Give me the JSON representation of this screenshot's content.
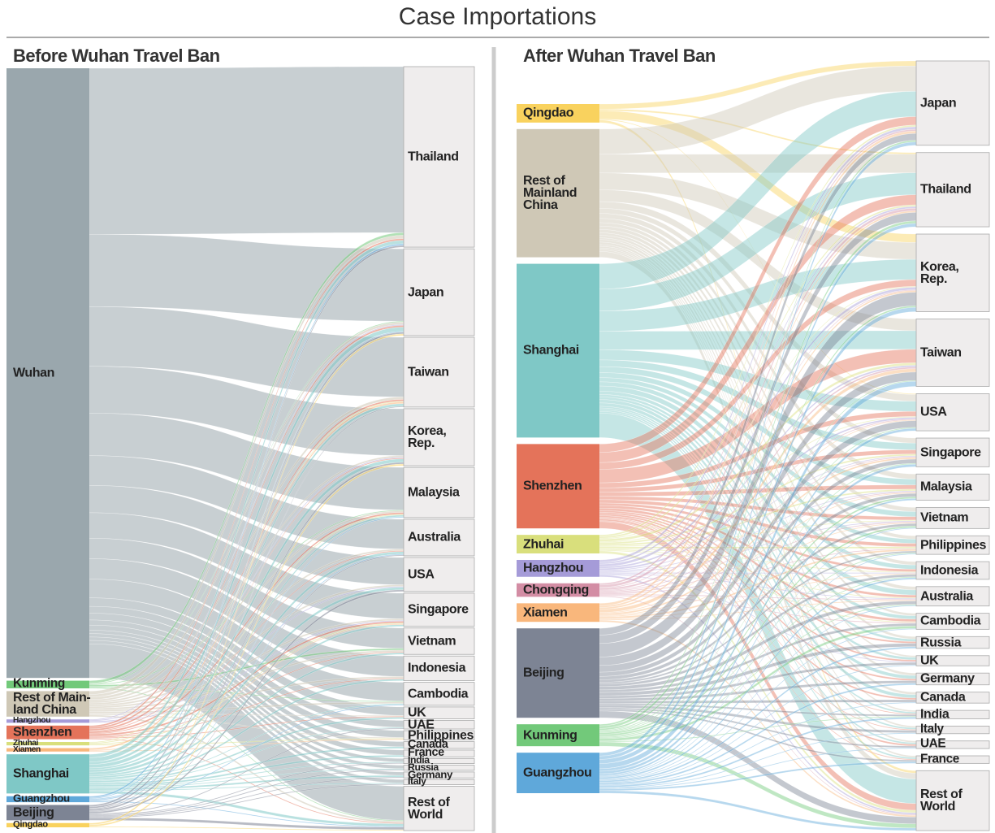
{
  "title": "Case Importations",
  "chart_data": [
    {
      "type": "sankey",
      "title": "Before Wuhan Travel Ban",
      "target_color": "#efeded",
      "categories": [
        "Thailand",
        "Japan",
        "Taiwan",
        "Korea,\nRep.",
        "Malaysia",
        "Australia",
        "USA",
        "Singapore",
        "Vietnam",
        "Indonesia",
        "Cambodia",
        "UK",
        "UAE",
        "Philippines",
        "Canada",
        "France",
        "India",
        "Russia",
        "Germany",
        "Italy",
        "Rest of\nWorld"
      ],
      "series": [
        {
          "name": "Wuhan",
          "color": "#9aa7ad",
          "values": [
            195,
            85,
            70,
            55,
            50,
            35,
            32,
            30,
            24,
            24,
            22,
            10,
            8,
            8,
            6,
            6,
            4,
            4,
            4,
            4,
            40
          ]
        },
        {
          "name": "Kunming",
          "color": "#72c97a",
          "values": [
            3,
            1,
            0,
            0,
            1,
            0,
            0,
            0,
            2,
            0,
            1,
            0,
            0,
            0,
            0,
            0,
            0,
            0,
            0,
            0,
            1
          ]
        },
        {
          "name": "Rest of Main-\nland China",
          "color": "#cfc8b6",
          "values": [
            4,
            3,
            3,
            2,
            2,
            2,
            2,
            2,
            2,
            2,
            2,
            1,
            0,
            1,
            0,
            0,
            0,
            0,
            0,
            0,
            2
          ]
        },
        {
          "name": "Hangzhou",
          "color": "#a59bd8",
          "values": [
            0,
            1,
            0,
            1,
            0,
            0,
            1,
            1,
            0,
            0,
            0,
            0,
            0,
            0,
            0,
            0,
            0,
            0,
            0,
            0,
            0
          ]
        },
        {
          "name": "Shenzhen",
          "color": "#e4735a",
          "values": [
            2,
            2,
            2,
            1,
            2,
            1,
            0,
            2,
            1,
            1,
            0,
            1,
            0,
            0,
            0,
            0,
            0,
            0,
            0,
            0,
            1
          ]
        },
        {
          "name": "Zhuhai",
          "color": "#d9df7c",
          "values": [
            0,
            0,
            1,
            0,
            1,
            0,
            0,
            1,
            0,
            0,
            0,
            0,
            0,
            1,
            0,
            0,
            0,
            0,
            0,
            0,
            0
          ]
        },
        {
          "name": "Xiamen",
          "color": "#f9b77c",
          "values": [
            0,
            0,
            2,
            0,
            0,
            0,
            0,
            1,
            0,
            0,
            0,
            0,
            0,
            1,
            0,
            0,
            0,
            0,
            0,
            0,
            0
          ]
        },
        {
          "name": "Shanghai",
          "color": "#7fc8c6",
          "values": [
            4,
            5,
            3,
            4,
            2,
            3,
            3,
            2,
            2,
            2,
            1,
            2,
            1,
            0,
            2,
            2,
            1,
            1,
            2,
            1,
            3
          ]
        },
        {
          "name": "Guangzhou",
          "color": "#5fa8da",
          "values": [
            2,
            1,
            0,
            0,
            1,
            1,
            0,
            0,
            0,
            0,
            1,
            0,
            0,
            0,
            0,
            0,
            0,
            0,
            0,
            0,
            1
          ]
        },
        {
          "name": "Beijing",
          "color": "#7d8494",
          "values": [
            2,
            2,
            1,
            2,
            0,
            1,
            2,
            0,
            0,
            0,
            0,
            0,
            1,
            0,
            0,
            0,
            1,
            1,
            1,
            1,
            3
          ]
        },
        {
          "name": "Qingdao",
          "color": "#f9d25e",
          "values": [
            0,
            2,
            0,
            2,
            0,
            0,
            0,
            0,
            0,
            0,
            0,
            0,
            0,
            0,
            0,
            0,
            0,
            0,
            0,
            0,
            1
          ]
        }
      ]
    },
    {
      "type": "sankey",
      "title": "After Wuhan Travel Ban",
      "target_color": "#efeded",
      "categories": [
        "Japan",
        "Thailand",
        "Korea,\nRep.",
        "Taiwan",
        "USA",
        "Singapore",
        "Malaysia",
        "Vietnam",
        "Philippines",
        "Indonesia",
        "Australia",
        "Cambodia",
        "Russia",
        "UK",
        "Germany",
        "Canada",
        "India",
        "Italy",
        "UAE",
        "France",
        "Rest of\nWorld"
      ],
      "series": [
        {
          "name": "Qingdao",
          "color": "#f9d25e",
          "values": [
            6,
            2,
            10,
            0,
            1,
            0,
            0,
            0,
            0,
            0,
            0,
            0,
            0,
            0,
            0,
            0,
            0,
            0,
            0,
            0,
            3
          ]
        },
        {
          "name": "Rest of\nMainland\nChina",
          "color": "#cfc8b6",
          "values": [
            30,
            22,
            20,
            14,
            8,
            6,
            6,
            5,
            4,
            4,
            4,
            3,
            3,
            2,
            3,
            3,
            2,
            2,
            2,
            2,
            7
          ]
        },
        {
          "name": "Shanghai",
          "color": "#7fc8c6",
          "values": [
            30,
            26,
            24,
            22,
            12,
            8,
            7,
            6,
            5,
            5,
            6,
            4,
            3,
            3,
            4,
            4,
            2,
            2,
            2,
            2,
            29
          ]
        },
        {
          "name": "Shenzhen",
          "color": "#e4735a",
          "values": [
            10,
            12,
            8,
            16,
            6,
            5,
            5,
            4,
            4,
            3,
            3,
            3,
            2,
            2,
            2,
            2,
            1,
            1,
            2,
            1,
            8
          ]
        },
        {
          "name": "Zhuhai",
          "color": "#d9df7c",
          "values": [
            2,
            2,
            1,
            3,
            1,
            2,
            2,
            1,
            2,
            1,
            1,
            1,
            0,
            0,
            0,
            0,
            0,
            0,
            0,
            0,
            3
          ]
        },
        {
          "name": "Hangzhou",
          "color": "#a59bd8",
          "values": [
            3,
            2,
            3,
            2,
            2,
            1,
            1,
            1,
            0,
            1,
            1,
            0,
            0,
            1,
            0,
            0,
            0,
            0,
            0,
            0,
            2
          ]
        },
        {
          "name": "Chongqing",
          "color": "#d38da4",
          "values": [
            2,
            3,
            1,
            2,
            1,
            1,
            1,
            1,
            1,
            0,
            1,
            1,
            0,
            0,
            0,
            0,
            0,
            0,
            0,
            0,
            1
          ]
        },
        {
          "name": "Xiamen",
          "color": "#f9b77c",
          "values": [
            3,
            2,
            2,
            4,
            1,
            2,
            1,
            1,
            2,
            1,
            1,
            0,
            0,
            0,
            0,
            0,
            0,
            0,
            0,
            0,
            2
          ]
        },
        {
          "name": "Beijing",
          "color": "#7d8494",
          "values": [
            8,
            10,
            16,
            10,
            8,
            5,
            4,
            3,
            2,
            3,
            4,
            3,
            4,
            3,
            3,
            3,
            2,
            3,
            2,
            2,
            8
          ]
        },
        {
          "name": "Kunming",
          "color": "#72c97a",
          "values": [
            2,
            3,
            2,
            1,
            1,
            1,
            2,
            2,
            1,
            1,
            1,
            3,
            0,
            0,
            0,
            0,
            1,
            0,
            0,
            0,
            5
          ]
        },
        {
          "name": "Guangzhou",
          "color": "#5fa8da",
          "values": [
            4,
            4,
            5,
            6,
            3,
            3,
            2,
            1,
            1,
            2,
            1,
            1,
            2,
            1,
            2,
            1,
            2,
            1,
            1,
            2,
            3
          ]
        }
      ]
    }
  ]
}
